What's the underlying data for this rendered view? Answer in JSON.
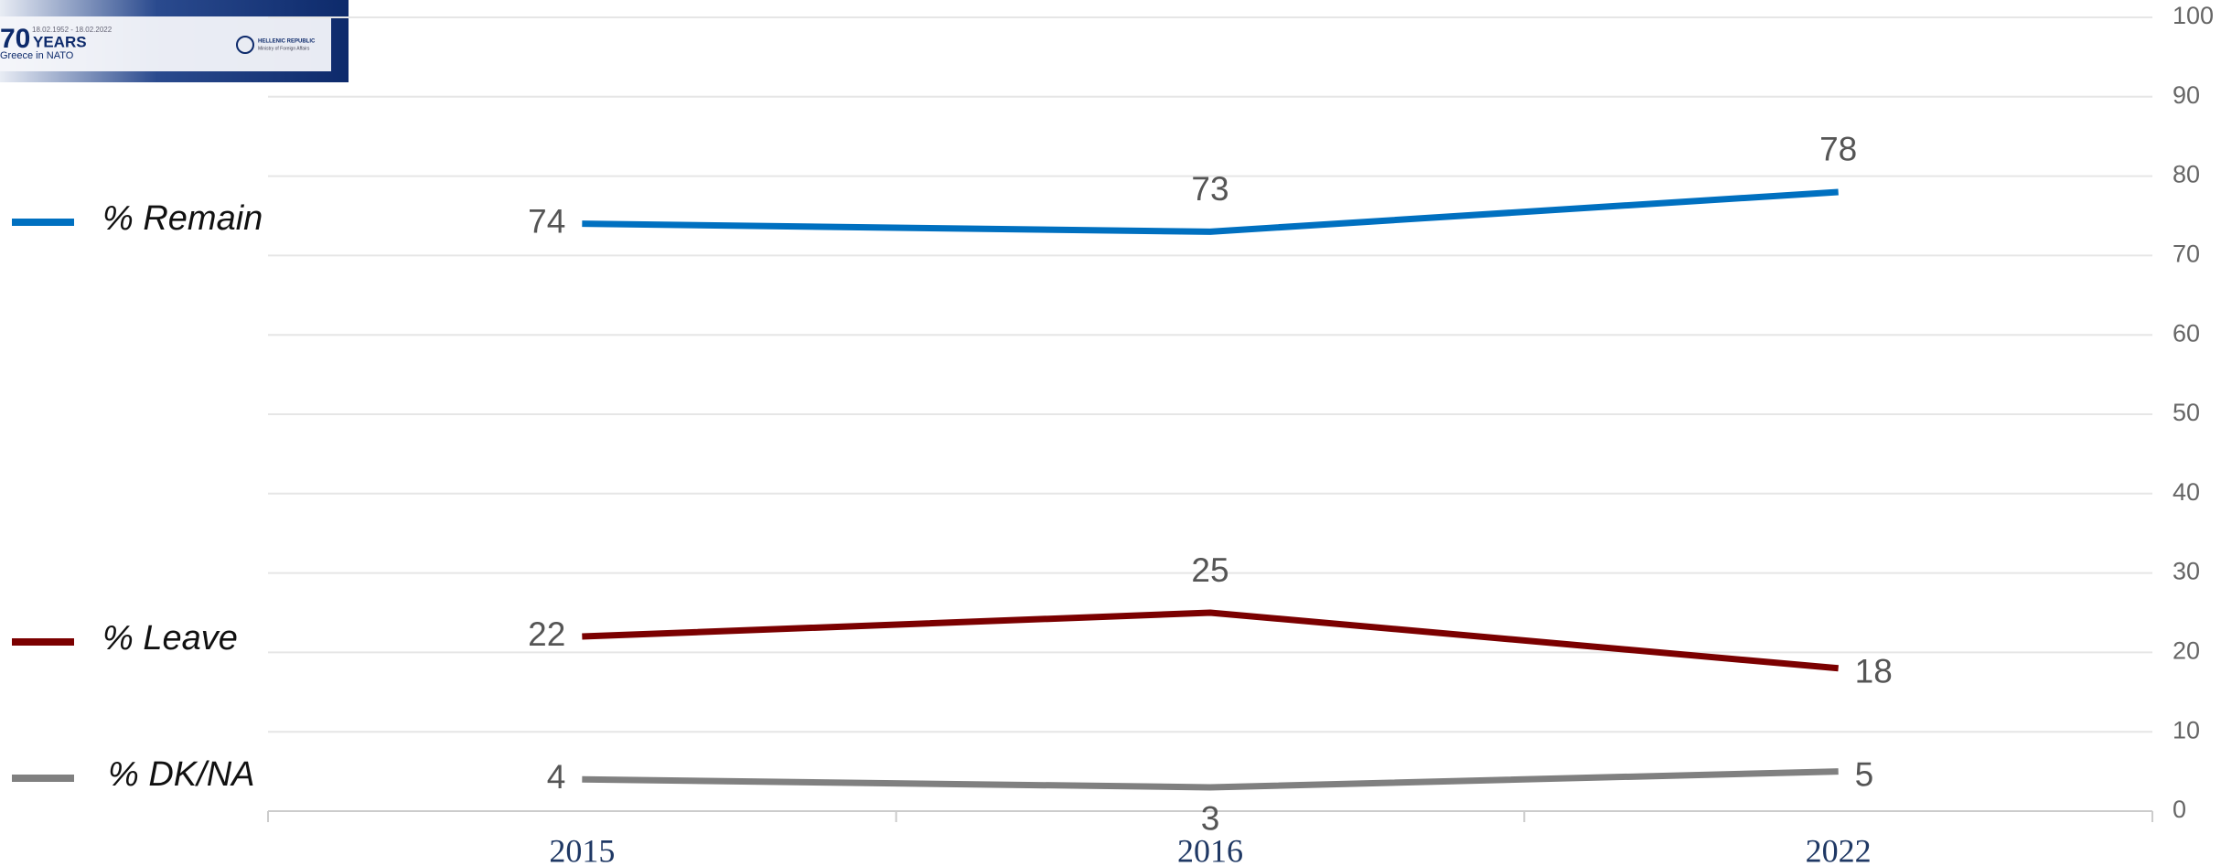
{
  "logo": {
    "number": "70",
    "word": "YEARS",
    "dates": "18.02.1952 - 18.02.2022",
    "subtitle": "Greece in NATO",
    "org": "HELLENIC REPUBLIC",
    "ministry": "Ministry of Foreign Affairs"
  },
  "chart_data": {
    "type": "line",
    "categories": [
      "2015",
      "2016",
      "2022"
    ],
    "series": [
      {
        "name": "% Remain",
        "color": "#0070c0",
        "values": [
          74,
          73,
          78
        ]
      },
      {
        "name": "% Leave",
        "color": "#7b0000",
        "values": [
          22,
          25,
          18
        ]
      },
      {
        "name": "% DK/NA",
        "color": "#808080",
        "values": [
          4,
          3,
          5
        ]
      }
    ],
    "ylim": [
      0,
      100
    ],
    "yticks": [
      0,
      10,
      20,
      30,
      40,
      50,
      60,
      70,
      80,
      90,
      100
    ],
    "grid": true,
    "legend": "left"
  }
}
